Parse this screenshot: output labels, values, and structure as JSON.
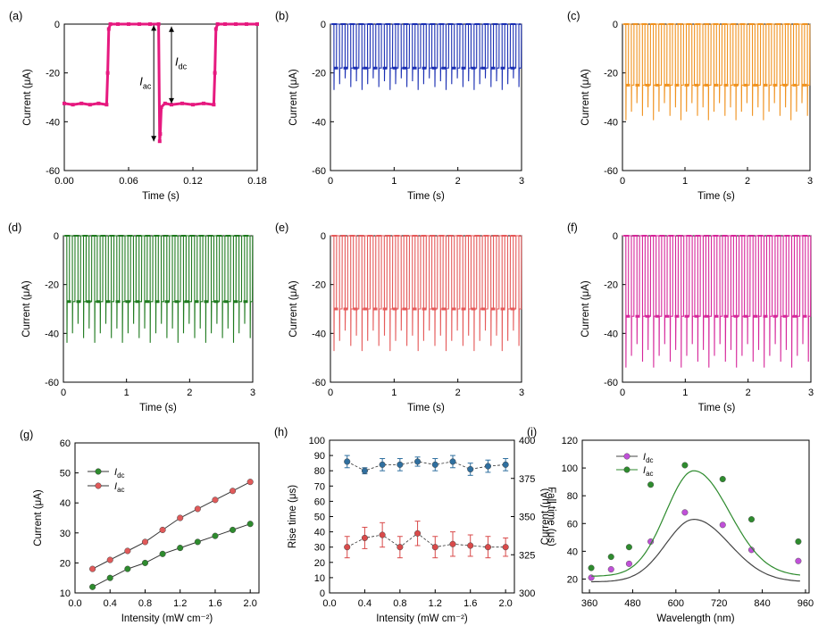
{
  "chart_data": [
    {
      "panel": "(a)",
      "type": "line",
      "xlabel": "Time (s)",
      "ylabel": "Current (μA)",
      "xlim": [
        0,
        0.18
      ],
      "ylim": [
        -60,
        0
      ],
      "xticks": [
        "0.00",
        "0.06",
        "0.12",
        "0.18"
      ],
      "yticks": [
        "0",
        "-20",
        "-40",
        "-60"
      ],
      "color": "#e6197f",
      "annotations": [
        {
          "text": "I",
          "sub": "ac"
        },
        {
          "text": "I",
          "sub": "dc"
        }
      ],
      "series": [
        {
          "x": [
            0,
            0.008,
            0.016,
            0.024,
            0.032,
            0.0395,
            0.0405,
            0.0415,
            0.043,
            0.05,
            0.06,
            0.07,
            0.08,
            0.088,
            0.089,
            0.0895,
            0.0905,
            0.094,
            0.1,
            0.11,
            0.12,
            0.13,
            0.1395,
            0.1405,
            0.1415,
            0.143,
            0.15,
            0.16,
            0.17,
            0.18
          ],
          "y": [
            -32.5,
            -33,
            -32.5,
            -33,
            -32.5,
            -33,
            -20,
            -2,
            0,
            0,
            0,
            0,
            0,
            0,
            -48,
            -45,
            -34,
            -32.5,
            -33,
            -32.5,
            -33,
            -32.5,
            -33,
            -20,
            -2,
            0,
            0,
            0,
            0,
            0
          ]
        }
      ]
    },
    {
      "panel": "(b)",
      "type": "line",
      "xlabel": "Time (s)",
      "ylabel": "Current (μA)",
      "xlim": [
        0,
        3
      ],
      "ylim": [
        -60,
        0
      ],
      "xticks": [
        "0",
        "1",
        "2",
        "3"
      ],
      "yticks": [
        "0",
        "-20",
        "-40",
        "-60"
      ],
      "color": "#1a2fb3",
      "pulses": 34,
      "period_s": 0.088,
      "plateau_uA": -18,
      "peak_uA": -24
    },
    {
      "panel": "(c)",
      "type": "line",
      "xlabel": "Time (s)",
      "ylabel": "Current (μA)",
      "xlim": [
        0,
        3
      ],
      "ylim": [
        -60,
        0
      ],
      "xticks": [
        "0",
        "1",
        "2",
        "3"
      ],
      "yticks": [
        "0",
        "-20",
        "-40",
        "-60"
      ],
      "color": "#f0921f",
      "pulses": 34,
      "period_s": 0.088,
      "plateau_uA": -25,
      "peak_uA": -35
    },
    {
      "panel": "(d)",
      "type": "line",
      "xlabel": "Time (s)",
      "ylabel": "Current (μA)",
      "xlim": [
        0,
        3
      ],
      "ylim": [
        -60,
        0
      ],
      "xticks": [
        "0",
        "1",
        "2",
        "3"
      ],
      "yticks": [
        "0",
        "-20",
        "-40",
        "-60"
      ],
      "color": "#1f7a1f",
      "pulses": 34,
      "period_s": 0.088,
      "plateau_uA": -27,
      "peak_uA": -39
    },
    {
      "panel": "(e)",
      "type": "line",
      "xlabel": "Time (s)",
      "ylabel": "Current (μA)",
      "xlim": [
        0,
        3
      ],
      "ylim": [
        -60,
        0
      ],
      "xticks": [
        "0",
        "1",
        "2",
        "3"
      ],
      "yticks": [
        "0",
        "-20",
        "-40",
        "-60"
      ],
      "color": "#e55a5a",
      "pulses": 34,
      "period_s": 0.088,
      "plateau_uA": -30,
      "peak_uA": -42
    },
    {
      "panel": "(f)",
      "type": "line",
      "xlabel": "Time (s)",
      "ylabel": "Current (μA)",
      "xlim": [
        0,
        3
      ],
      "ylim": [
        -60,
        0
      ],
      "xticks": [
        "0",
        "1",
        "2",
        "3"
      ],
      "yticks": [
        "0",
        "-20",
        "-40",
        "-60"
      ],
      "color": "#d6269a",
      "pulses": 34,
      "period_s": 0.088,
      "plateau_uA": -33,
      "peak_uA": -48
    },
    {
      "panel": "(g)",
      "type": "line",
      "xlabel": "Intensity (mW cm⁻²)",
      "ylabel": "Current (μA)",
      "xlim": [
        0,
        2.1
      ],
      "ylim": [
        10,
        60
      ],
      "xticks": [
        "0.0",
        "0.4",
        "0.8",
        "1.2",
        "1.6",
        "2.0"
      ],
      "yticks": [
        "10",
        "20",
        "30",
        "40",
        "50",
        "60"
      ],
      "legend_position": "upper-left",
      "x": [
        0.2,
        0.4,
        0.6,
        0.8,
        1.0,
        1.2,
        1.4,
        1.6,
        1.8,
        2.0
      ],
      "series": [
        {
          "name": "I",
          "sub": "dc",
          "color": "#2e8b2e",
          "values": [
            12,
            15,
            18,
            20,
            23,
            25,
            27,
            29,
            31,
            33
          ]
        },
        {
          "name": "I",
          "sub": "ac",
          "color": "#e05a5a",
          "values": [
            18,
            21,
            24,
            27,
            31,
            35,
            38,
            41,
            44,
            47
          ]
        }
      ]
    },
    {
      "panel": "(h)",
      "type": "line",
      "xlabel": "Intensity (mW cm⁻²)",
      "ylabel": "Rise time (μs)",
      "ylabel_right": "Fall time (μs)",
      "xlim": [
        0,
        2.1
      ],
      "ylim": [
        0,
        100
      ],
      "ylim_right": [
        300,
        400
      ],
      "xticks": [
        "0.0",
        "0.4",
        "0.8",
        "1.2",
        "1.6",
        "2.0"
      ],
      "yticks": [
        "0",
        "10",
        "20",
        "30",
        "40",
        "50",
        "60",
        "70",
        "80",
        "90",
        "100"
      ],
      "yticks_right": [
        "300",
        "325",
        "350",
        "375",
        "400"
      ],
      "x": [
        0.2,
        0.4,
        0.6,
        0.8,
        1.0,
        1.2,
        1.4,
        1.6,
        1.8,
        2.0
      ],
      "series": [
        {
          "axis": "right",
          "color": "#2f6f9f",
          "values": [
            386,
            380,
            384,
            384,
            386,
            384,
            386,
            381,
            383,
            384
          ],
          "err": [
            4,
            2,
            4,
            4,
            3,
            4,
            4,
            4,
            4,
            4
          ]
        },
        {
          "axis": "left",
          "color": "#d94a4a",
          "values": [
            30,
            36,
            38,
            30,
            39,
            30,
            32,
            31,
            30,
            30
          ],
          "err": [
            7,
            7,
            8,
            7,
            8,
            7,
            8,
            7,
            7,
            6
          ]
        }
      ]
    },
    {
      "panel": "(i)",
      "type": "scatter",
      "xlabel": "Wavelength (nm)",
      "ylabel": "Current (μA)",
      "xlim": [
        340,
        970
      ],
      "ylim": [
        10,
        120
      ],
      "xticks": [
        "360",
        "480",
        "600",
        "720",
        "840",
        "960"
      ],
      "yticks": [
        "20",
        "40",
        "60",
        "80",
        "100",
        "120"
      ],
      "legend_position": "upper-left",
      "series": [
        {
          "name": "I",
          "sub": "dc",
          "color": "#c050d8",
          "x": [
            365,
            420,
            470,
            530,
            625,
            730,
            810,
            940
          ],
          "values": [
            21,
            27,
            31,
            47,
            68,
            59,
            41,
            33
          ]
        },
        {
          "name": "I",
          "sub": "ac",
          "color": "#2e8b2e",
          "x": [
            365,
            420,
            470,
            530,
            625,
            730,
            810,
            940
          ],
          "values": [
            28,
            36,
            43,
            88,
            102,
            92,
            63,
            47
          ]
        }
      ]
    }
  ]
}
